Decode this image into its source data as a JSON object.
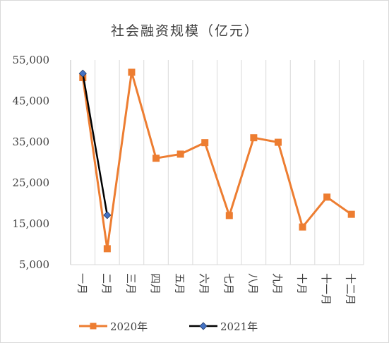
{
  "chart_data": {
    "type": "line",
    "title": "社会融资规模（亿元）",
    "categories": [
      "一月",
      "二月",
      "三月",
      "四月",
      "五月",
      "六月",
      "七月",
      "八月",
      "九月",
      "十月",
      "十一月",
      "十二月"
    ],
    "y_tick_labels": [
      "5,000",
      "15,000",
      "25,000",
      "35,000",
      "45,000",
      "55,000"
    ],
    "ylim": [
      5000,
      55000
    ],
    "grid": "vertical",
    "legend_position": "bottom",
    "series": [
      {
        "name": "2020年",
        "values": [
          50700,
          8900,
          52000,
          31000,
          32000,
          34800,
          17000,
          36000,
          34900,
          14200,
          21500,
          17300
        ],
        "color": "#ED7D31",
        "marker": "square"
      },
      {
        "name": "2021年",
        "values": [
          51700,
          17100,
          null,
          null,
          null,
          null,
          null,
          null,
          null,
          null,
          null,
          null
        ],
        "color": "#000000",
        "marker_color": "#4472C4",
        "marker": "diamond"
      }
    ]
  }
}
